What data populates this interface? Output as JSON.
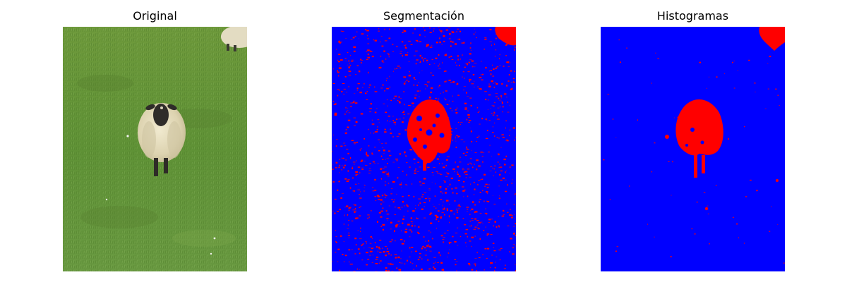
{
  "figure": {
    "panels": [
      {
        "title": "Original",
        "content": "photo-grass-field-with-sheep"
      },
      {
        "title": "Segmentación",
        "content": "segmentation-mask",
        "colors": {
          "foreground": "#ff0000",
          "background": "#0000ff"
        }
      },
      {
        "title": "Histogramas",
        "content": "segmentation-mask",
        "colors": {
          "foreground": "#ff0000",
          "background": "#0000ff"
        }
      }
    ]
  }
}
